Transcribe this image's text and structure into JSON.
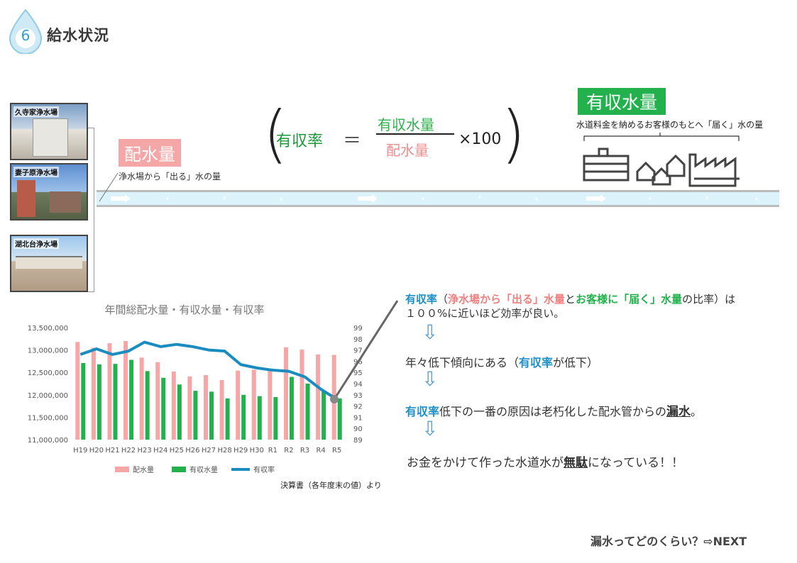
{
  "header": {
    "number": "6",
    "title": "給水状況"
  },
  "plants": [
    {
      "name": "久寺家浄水場"
    },
    {
      "name": "妻子原浄水場"
    },
    {
      "name": "湖北台浄水場"
    }
  ],
  "distribution": {
    "label": "配水量",
    "desc": "浄水場から「出る」水の量"
  },
  "formula": {
    "name": "有収率",
    "eq": "＝",
    "numerator": "有収水量",
    "denominator": "配水量",
    "multiplier": "×100"
  },
  "revenue": {
    "label": "有収水量",
    "desc": "水道料金を納めるお客様のもとへ「届く」水の量"
  },
  "explanation": {
    "l1_a": "有収率",
    "l1_b": "（",
    "l1_c": "浄水場から「出る」水量",
    "l1_d": "と",
    "l1_e": "お客様に「届く」水量",
    "l1_f": "の比率）は",
    "l2": "１００%に近いほど効率が良い。",
    "l3_a": "年々低下傾向にある（",
    "l3_b": "有収率",
    "l3_c": "が低下）",
    "l4_a": "有収率",
    "l4_b": "低下の一番の原因は老朽化した配水管からの",
    "l4_c": "漏水",
    "l4_d": "。",
    "l5_a": "お金をかけて作った水道水が",
    "l5_b": "無駄",
    "l5_c": "になっている！！"
  },
  "source": "決算書（各年度末の値）より",
  "next": "漏水ってどのくらい？⇨NEXT",
  "chart_data": {
    "type": "bar",
    "title": "年間総配水量・有収水量・有収率",
    "categories": [
      "H19",
      "H20",
      "H21",
      "H22",
      "H23",
      "H24",
      "H25",
      "H26",
      "H27",
      "H28",
      "H29",
      "H30",
      "R1",
      "R2",
      "R3",
      "R4",
      "R5"
    ],
    "ylim": [
      11000000,
      13500000
    ],
    "y_ticks": [
      "13,500,000",
      "13,000,000",
      "12,500,000",
      "12,000,000",
      "11,500,000",
      "11,000,000"
    ],
    "y2lim": [
      89,
      99
    ],
    "y2_ticks": [
      "99",
      "98",
      "97",
      "96",
      "95",
      "94",
      "93",
      "92",
      "91",
      "90",
      "89"
    ],
    "series": [
      {
        "name": "配水量",
        "axis": "left",
        "type": "bar",
        "color": "#f5a6a6",
        "values": [
          13180000,
          13050000,
          13150000,
          13200000,
          12830000,
          12730000,
          12520000,
          12410000,
          12440000,
          12330000,
          12540000,
          12560000,
          12560000,
          13060000,
          13010000,
          12900000,
          12890000
        ]
      },
      {
        "name": "有収水量",
        "axis": "left",
        "type": "bar",
        "color": "#22b14c",
        "values": [
          12710000,
          12680000,
          12690000,
          12780000,
          12530000,
          12380000,
          12230000,
          12090000,
          12070000,
          11920000,
          12000000,
          11970000,
          11950000,
          12400000,
          12250000,
          12100000,
          11920000
        ]
      },
      {
        "name": "有収率",
        "axis": "right",
        "type": "line",
        "color": "#1a8cc0",
        "values": [
          96.6,
          97.1,
          96.6,
          96.9,
          97.7,
          97.3,
          97.5,
          97.3,
          97.0,
          96.9,
          95.7,
          95.4,
          95.2,
          95.1,
          94.6,
          93.5,
          92.6
        ]
      }
    ],
    "legend": "bottom"
  }
}
